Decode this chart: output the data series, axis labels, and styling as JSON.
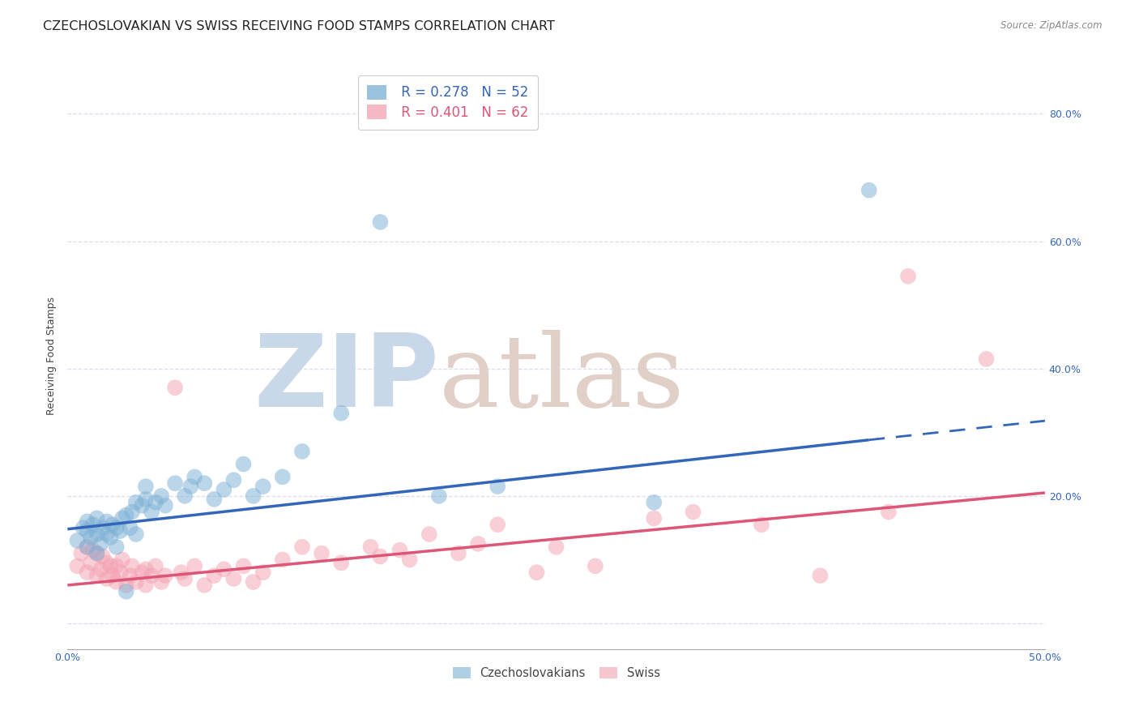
{
  "title": "CZECHOSLOVAKIAN VS SWISS RECEIVING FOOD STAMPS CORRELATION CHART",
  "source": "Source: ZipAtlas.com",
  "ylabel": "Receiving Food Stamps",
  "xmin": 0.0,
  "xmax": 0.5,
  "ymin": -0.04,
  "ymax": 0.88,
  "yticks": [
    0.0,
    0.2,
    0.4,
    0.6,
    0.8
  ],
  "ytick_labels": [
    "",
    "20.0%",
    "40.0%",
    "60.0%",
    "80.0%"
  ],
  "xticks": [
    0.0,
    0.1,
    0.2,
    0.3,
    0.4,
    0.5
  ],
  "xtick_labels": [
    "0.0%",
    "",
    "",
    "",
    "",
    "50.0%"
  ],
  "blue_R": "0.278",
  "blue_N": "52",
  "pink_R": "0.401",
  "pink_N": "62",
  "blue_color": "#7BAFD4",
  "pink_color": "#F4A0B0",
  "blue_line_color": "#3366BB",
  "pink_line_color": "#DD5577",
  "background_color": "#ffffff",
  "grid_color": "#DDDDEE",
  "watermark_zip_color": "#C8D8E8",
  "watermark_atlas_color": "#E0D0C8",
  "blue_scatter_x": [
    0.005,
    0.008,
    0.01,
    0.01,
    0.01,
    0.012,
    0.013,
    0.015,
    0.015,
    0.015,
    0.017,
    0.018,
    0.02,
    0.02,
    0.022,
    0.023,
    0.025,
    0.025,
    0.027,
    0.028,
    0.03,
    0.03,
    0.032,
    0.033,
    0.035,
    0.035,
    0.038,
    0.04,
    0.04,
    0.043,
    0.045,
    0.048,
    0.05,
    0.055,
    0.06,
    0.063,
    0.065,
    0.07,
    0.075,
    0.08,
    0.085,
    0.09,
    0.095,
    0.1,
    0.11,
    0.12,
    0.14,
    0.16,
    0.19,
    0.22,
    0.3,
    0.41
  ],
  "blue_scatter_y": [
    0.13,
    0.15,
    0.12,
    0.145,
    0.16,
    0.135,
    0.155,
    0.11,
    0.14,
    0.165,
    0.125,
    0.15,
    0.14,
    0.16,
    0.135,
    0.155,
    0.12,
    0.15,
    0.145,
    0.165,
    0.05,
    0.17,
    0.15,
    0.175,
    0.14,
    0.19,
    0.185,
    0.195,
    0.215,
    0.175,
    0.19,
    0.2,
    0.185,
    0.22,
    0.2,
    0.215,
    0.23,
    0.22,
    0.195,
    0.21,
    0.225,
    0.25,
    0.2,
    0.215,
    0.23,
    0.27,
    0.33,
    0.63,
    0.2,
    0.215,
    0.19,
    0.68
  ],
  "pink_scatter_x": [
    0.005,
    0.007,
    0.01,
    0.01,
    0.012,
    0.013,
    0.015,
    0.015,
    0.017,
    0.018,
    0.02,
    0.02,
    0.022,
    0.023,
    0.025,
    0.025,
    0.027,
    0.028,
    0.03,
    0.032,
    0.033,
    0.035,
    0.038,
    0.04,
    0.04,
    0.043,
    0.045,
    0.048,
    0.05,
    0.055,
    0.058,
    0.06,
    0.065,
    0.07,
    0.075,
    0.08,
    0.085,
    0.09,
    0.095,
    0.1,
    0.11,
    0.12,
    0.13,
    0.14,
    0.155,
    0.16,
    0.17,
    0.175,
    0.185,
    0.2,
    0.21,
    0.22,
    0.24,
    0.25,
    0.27,
    0.3,
    0.32,
    0.355,
    0.385,
    0.42,
    0.43,
    0.47
  ],
  "pink_scatter_y": [
    0.09,
    0.11,
    0.08,
    0.12,
    0.095,
    0.115,
    0.075,
    0.11,
    0.085,
    0.105,
    0.07,
    0.095,
    0.09,
    0.075,
    0.065,
    0.09,
    0.08,
    0.1,
    0.06,
    0.075,
    0.09,
    0.065,
    0.08,
    0.06,
    0.085,
    0.075,
    0.09,
    0.065,
    0.075,
    0.37,
    0.08,
    0.07,
    0.09,
    0.06,
    0.075,
    0.085,
    0.07,
    0.09,
    0.065,
    0.08,
    0.1,
    0.12,
    0.11,
    0.095,
    0.12,
    0.105,
    0.115,
    0.1,
    0.14,
    0.11,
    0.125,
    0.155,
    0.08,
    0.12,
    0.09,
    0.165,
    0.175,
    0.155,
    0.075,
    0.175,
    0.545,
    0.415
  ],
  "blue_line_x0": 0.0,
  "blue_line_x_solid_end": 0.41,
  "blue_line_x_dash_end": 0.5,
  "blue_line_y0": 0.148,
  "blue_line_y_solid_end": 0.288,
  "blue_line_y_dash_end": 0.318,
  "pink_line_x0": 0.0,
  "pink_line_x_end": 0.5,
  "pink_line_y0": 0.06,
  "pink_line_y_end": 0.205,
  "title_fontsize": 11.5,
  "axis_label_fontsize": 9,
  "tick_fontsize": 9,
  "legend_fontsize": 12
}
